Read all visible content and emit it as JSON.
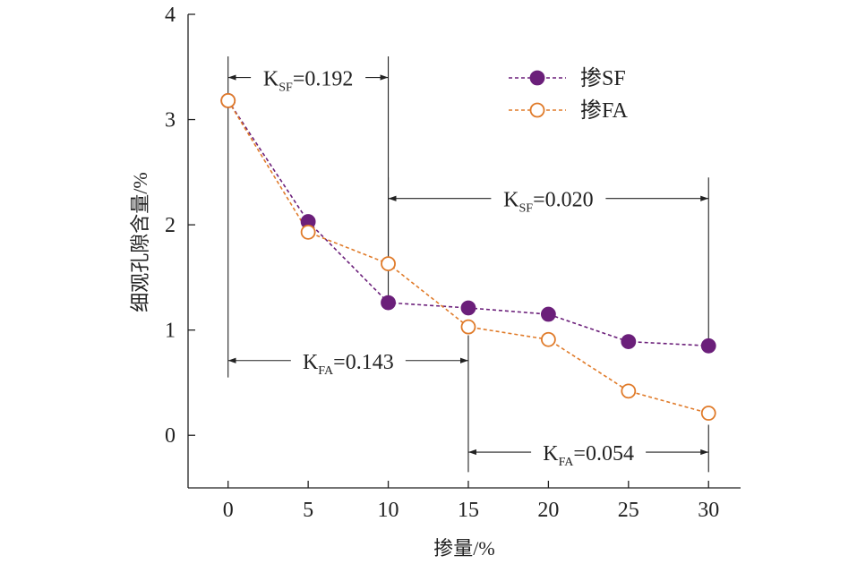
{
  "chart_data": {
    "type": "line",
    "x": [
      0,
      5,
      10,
      15,
      20,
      25,
      30
    ],
    "xlabel": "掺量/%",
    "ylabel": "细观孔隙含量/%",
    "xlim": [
      -2.5,
      32
    ],
    "ylim": [
      -0.5,
      4
    ],
    "xticks": [
      0,
      5,
      10,
      15,
      20,
      25,
      30
    ],
    "yticks": [
      0,
      1,
      2,
      3,
      4
    ],
    "grid": false,
    "legend_position": "top-right",
    "series": [
      {
        "name": "掺SF",
        "marker": "filled-circle",
        "line": "dashed",
        "color": "#6b1f7a",
        "values": [
          3.18,
          2.03,
          1.26,
          1.21,
          1.15,
          0.89,
          0.85
        ]
      },
      {
        "name": "掺FA",
        "marker": "open-circle",
        "line": "dashed",
        "color": "#e07b2a",
        "values": [
          3.18,
          1.93,
          1.63,
          1.03,
          0.91,
          0.42,
          0.21
        ]
      }
    ],
    "annotations": [
      {
        "main": "K",
        "sub": "SF",
        "value": "=0.192",
        "x_from": 0,
        "x_to": 10,
        "y": 3.4
      },
      {
        "main": "K",
        "sub": "SF",
        "value": "=0.020",
        "x_from": 10,
        "x_to": 30,
        "y": 2.25
      },
      {
        "main": "K",
        "sub": "FA",
        "value": "=0.143",
        "x_from": 0,
        "x_to": 15,
        "y": 0.71
      },
      {
        "main": "K",
        "sub": "FA",
        "value": "=0.054",
        "x_from": 15,
        "x_to": 30,
        "y": -0.16
      }
    ],
    "reference_lines": [
      {
        "x": 0,
        "y_from": 3.6,
        "y_to": 0.55
      },
      {
        "x": 10,
        "y_from": 3.6,
        "y_to": 1.26
      },
      {
        "x": 10,
        "y_from": 2.45,
        "y_to": 1.63
      },
      {
        "x": 15,
        "y_from": 0.95,
        "y_to": -0.35
      },
      {
        "x": 30,
        "y_from": 2.45,
        "y_to": 0.85
      },
      {
        "x": 30,
        "y_from": 0.1,
        "y_to": -0.35
      }
    ]
  }
}
